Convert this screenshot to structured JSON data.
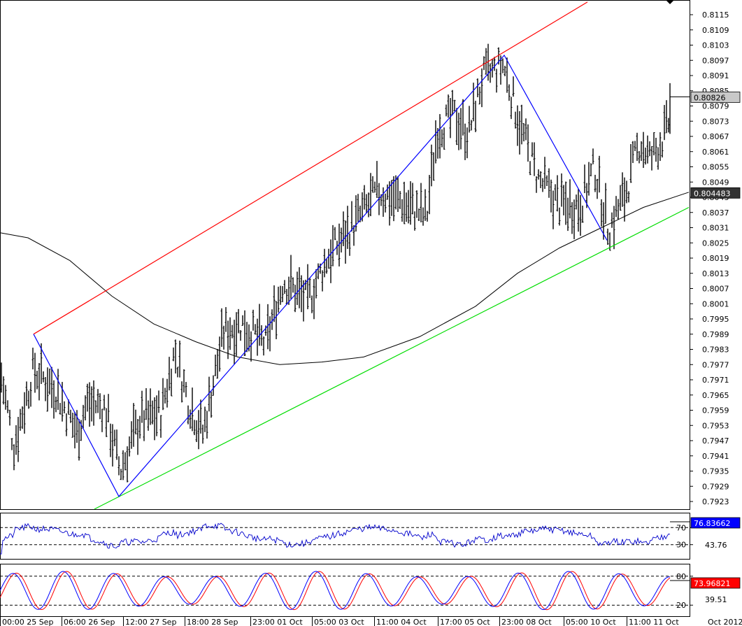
{
  "chart_data": [
    {
      "type": "candlestick",
      "role": "price",
      "y_axis_ticks": [
        "0.8115",
        "0.8109",
        "0.8103",
        "0.8097",
        "0.8091",
        "0.8085",
        "0.8079",
        "0.8073",
        "0.8067",
        "0.8061",
        "0.8055",
        "0.8049",
        "0.8043",
        "0.8037",
        "0.8031",
        "0.8025",
        "0.8019",
        "0.8013",
        "0.8007",
        "0.8001",
        "0.7995",
        "0.7989",
        "0.7983",
        "0.7977",
        "0.7971",
        "0.7965",
        "0.7959",
        "0.7953",
        "0.7947",
        "0.7941",
        "0.7935",
        "0.7929",
        "0.7923"
      ],
      "ylim": [
        0.792,
        0.812
      ],
      "x_labels": [
        "00:00 25 Sep",
        "06:00 26 Sep",
        "12:00 27 Sep",
        "18:00 28 Sep",
        "23:00 01 Oct",
        "05:00 03 Oct",
        "11:00 04 Oct",
        "17:00 05 Oct",
        "23:00 08 Oct",
        "05:00 10 Oct",
        "11:00 11 Oct",
        "Oct 2012"
      ],
      "current_price_label": "0.80826",
      "moving_average_label": "0.804483",
      "zigzag": [
        [
          48,
          0.7989
        ],
        [
          170,
          0.7925
        ],
        [
          721,
          0.8099
        ],
        [
          868,
          0.8026
        ]
      ],
      "channel_upper": [
        [
          48,
          0.7989
        ],
        [
          840,
          0.812
        ]
      ],
      "channel_lower": [
        [
          135,
          0.792
        ],
        [
          985,
          0.8039
        ]
      ],
      "moving_average": [
        [
          0,
          0.8029
        ],
        [
          40,
          0.8027
        ],
        [
          100,
          0.8018
        ],
        [
          160,
          0.8004
        ],
        [
          220,
          0.7993
        ],
        [
          280,
          0.7986
        ],
        [
          340,
          0.798
        ],
        [
          400,
          0.7977
        ],
        [
          460,
          0.7978
        ],
        [
          520,
          0.798
        ],
        [
          600,
          0.7988
        ],
        [
          680,
          0.8
        ],
        [
          740,
          0.8013
        ],
        [
          800,
          0.8023
        ],
        [
          860,
          0.8031
        ],
        [
          920,
          0.8039
        ],
        [
          985,
          0.8045
        ]
      ],
      "ohlc_trend": [
        [
          0,
          0.7975
        ],
        [
          20,
          0.7945
        ],
        [
          48,
          0.7975
        ],
        [
          80,
          0.7967
        ],
        [
          110,
          0.795
        ],
        [
          125,
          0.7962
        ],
        [
          150,
          0.796
        ],
        [
          172,
          0.7935
        ],
        [
          200,
          0.7955
        ],
        [
          230,
          0.7958
        ],
        [
          250,
          0.7982
        ],
        [
          270,
          0.7962
        ],
        [
          290,
          0.795
        ],
        [
          320,
          0.799
        ],
        [
          345,
          0.7993
        ],
        [
          380,
          0.7985
        ],
        [
          405,
          0.801
        ],
        [
          440,
          0.8002
        ],
        [
          470,
          0.802
        ],
        [
          500,
          0.803
        ],
        [
          540,
          0.8045
        ],
        [
          570,
          0.8042
        ],
        [
          610,
          0.8035
        ],
        [
          625,
          0.807
        ],
        [
          650,
          0.8075
        ],
        [
          670,
          0.8068
        ],
        [
          690,
          0.809
        ],
        [
          720,
          0.8095
        ],
        [
          745,
          0.807
        ],
        [
          770,
          0.805
        ],
        [
          800,
          0.804
        ],
        [
          830,
          0.804
        ],
        [
          850,
          0.8055
        ],
        [
          870,
          0.803
        ],
        [
          895,
          0.8045
        ],
        [
          915,
          0.8065
        ],
        [
          930,
          0.8058
        ],
        [
          955,
          0.807
        ],
        [
          960,
          0.8082
        ]
      ]
    },
    {
      "type": "line",
      "role": "oscillator-1",
      "levels": [
        "70",
        "30"
      ],
      "current_value_label": "76.83662",
      "secondary_label": "43.76",
      "ylim": [
        0,
        100
      ]
    },
    {
      "type": "line",
      "role": "oscillator-2",
      "levels": [
        "80",
        "20"
      ],
      "current_value_label": "73.96821",
      "secondary_label": "39.51",
      "ylim": [
        0,
        100
      ]
    }
  ],
  "colors": {
    "price_bars": "#000000",
    "channel_upper": "#ff0000",
    "channel_lower": "#00dd00",
    "zigzag": "#0000ff",
    "moving_average": "#000000",
    "osc1_line": "#0000cc",
    "osc2_main": "#0000ff",
    "osc2_signal": "#ff0000",
    "badge_blue": "#0000ff",
    "badge_red": "#ff0000",
    "badge_gray": "#c8c8c8",
    "badge_dark": "#333333"
  }
}
